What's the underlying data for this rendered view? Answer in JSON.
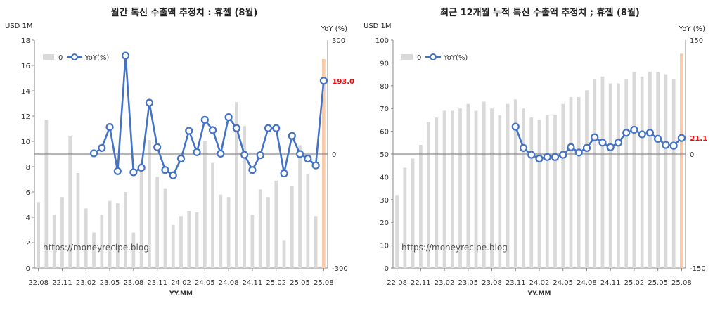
{
  "chart_data": [
    {
      "type": "bar+line",
      "title": "월간 톡신 수출액 추정치 : 휴젤 (8월)",
      "ylabel_left": "USD 1M",
      "ylabel_right": "YoY (%)",
      "xlabel": "YY.MM",
      "watermark": "https://moneyrecipe.blog",
      "ylim_left": [
        0,
        18
      ],
      "yticks_left": [
        "0",
        "2",
        "4",
        "6",
        "8",
        "10",
        "12",
        "14",
        "16",
        "18"
      ],
      "ylim_right": [
        -300,
        300
      ],
      "yticks_right": [
        "-300",
        "0",
        "300"
      ],
      "xtick_labels": [
        "22.08",
        "22.11",
        "23.02",
        "23.05",
        "23.08",
        "23.11",
        "24.02",
        "24.05",
        "24.08",
        "24.11",
        "25.02",
        "25.05",
        "25.08"
      ],
      "legend": {
        "bar": "0",
        "line": "YoY(%)"
      },
      "categories": [
        "22.08",
        "22.09",
        "22.10",
        "22.11",
        "22.12",
        "23.01",
        "23.02",
        "23.03",
        "23.04",
        "23.05",
        "23.06",
        "23.07",
        "23.08",
        "23.09",
        "23.10",
        "23.11",
        "23.12",
        "24.01",
        "24.02",
        "24.03",
        "24.04",
        "24.05",
        "24.06",
        "24.07",
        "24.08",
        "24.09",
        "24.10",
        "24.11",
        "24.12",
        "25.01",
        "25.02",
        "25.03",
        "25.04",
        "25.05",
        "25.06",
        "25.07",
        "25.08"
      ],
      "series": [
        {
          "name": "0",
          "kind": "bar",
          "values": [
            5.2,
            11.7,
            4.2,
            5.6,
            10.4,
            7.5,
            4.7,
            2.8,
            4.2,
            5.3,
            5.1,
            6.0,
            2.8,
            8.3,
            10.1,
            7.2,
            6.3,
            3.4,
            4.1,
            4.5,
            4.4,
            10.0,
            8.3,
            5.8,
            5.6,
            13.1,
            11.2,
            4.2,
            6.2,
            5.6,
            6.9,
            2.2,
            6.5,
            9.7,
            7.4,
            4.1,
            16.5
          ]
        },
        {
          "name": "YoY(%)",
          "kind": "line",
          "values": [
            null,
            null,
            null,
            null,
            null,
            null,
            null,
            2,
            16,
            71,
            -45,
            259,
            -48,
            -36,
            135,
            18,
            -42,
            -56,
            -12,
            61,
            5,
            90,
            63,
            1,
            97,
            68,
            -2,
            -42,
            -3,
            68,
            68,
            -51,
            48,
            0,
            -12,
            -30,
            193
          ]
        }
      ],
      "annotation": "193.0",
      "colors": {
        "bar": "#d9d9d9",
        "last_bar": "#f8cbad",
        "line": "#4472c4",
        "annotation": "#ff0000"
      }
    },
    {
      "type": "bar+line",
      "title": "최근 12개월 누적 톡신 수출액 추정치 ; 휴젤 (8월)",
      "ylabel_left": "USD 1M",
      "ylabel_right": "YoY (%)",
      "xlabel": "YY.MM",
      "watermark": "https://moneyrecipe.blog",
      "ylim_left": [
        0,
        100
      ],
      "yticks_left": [
        "0",
        "10",
        "20",
        "30",
        "40",
        "50",
        "60",
        "70",
        "80",
        "90",
        "100"
      ],
      "ylim_right": [
        -150,
        150
      ],
      "yticks_right": [
        "-150",
        "0",
        "150"
      ],
      "xtick_labels": [
        "22.08",
        "22.11",
        "23.02",
        "23.05",
        "23.08",
        "23.11",
        "24.02",
        "24.05",
        "24.08",
        "24.11",
        "25.02",
        "25.05",
        "25.08"
      ],
      "legend": {
        "bar": "0",
        "line": "YoY(%)"
      },
      "categories": [
        "22.08",
        "22.09",
        "22.10",
        "22.11",
        "22.12",
        "23.01",
        "23.02",
        "23.03",
        "23.04",
        "23.05",
        "23.06",
        "23.07",
        "23.08",
        "23.09",
        "23.10",
        "23.11",
        "23.12",
        "24.01",
        "24.02",
        "24.03",
        "24.04",
        "24.05",
        "24.06",
        "24.07",
        "24.08",
        "24.09",
        "24.10",
        "24.11",
        "24.12",
        "25.01",
        "25.02",
        "25.03",
        "25.04",
        "25.05",
        "25.06",
        "25.07",
        "25.08"
      ],
      "series": [
        {
          "name": "0",
          "kind": "bar",
          "values": [
            32,
            44,
            48,
            54,
            64,
            66,
            69,
            69,
            70,
            72,
            69,
            73,
            70,
            67,
            72,
            74,
            70,
            66,
            65,
            67,
            67,
            72,
            75,
            75,
            78,
            83,
            84,
            81,
            81,
            83,
            86,
            84,
            86,
            86,
            85,
            83,
            94
          ]
        },
        {
          "name": "YoY(%)",
          "kind": "line",
          "values": [
            null,
            null,
            null,
            null,
            null,
            null,
            null,
            null,
            null,
            null,
            null,
            null,
            null,
            null,
            null,
            36,
            8,
            -1,
            -6,
            -4,
            -4,
            -1,
            9,
            2,
            8,
            22,
            15,
            9,
            15,
            28,
            32,
            26,
            28,
            20,
            12,
            11,
            21.1
          ]
        }
      ],
      "annotation": "21.1",
      "colors": {
        "bar": "#d9d9d9",
        "last_bar": "#f8cbad",
        "line": "#4472c4",
        "annotation": "#ff0000"
      }
    }
  ]
}
